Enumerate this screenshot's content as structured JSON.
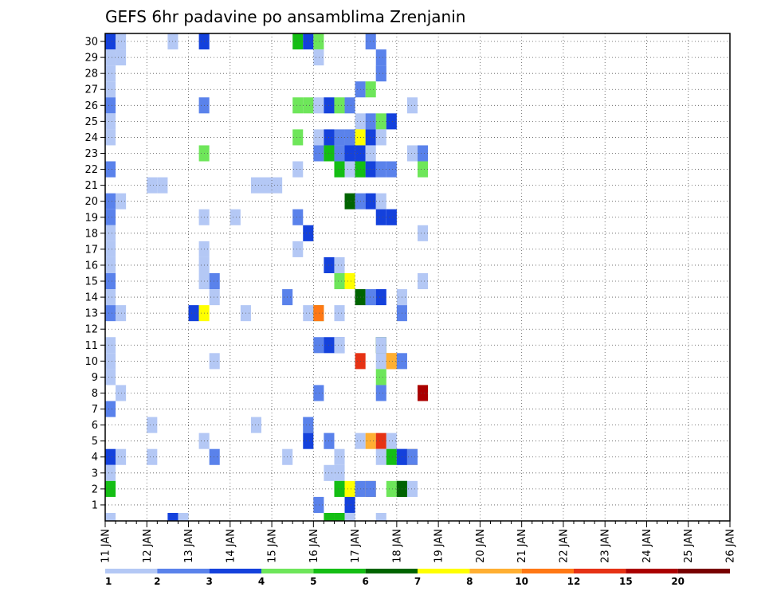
{
  "chart_data": {
    "type": "heatmap",
    "title": "GEFS 6hr padavine po ansamblima Zrenjanin",
    "xlabel": "",
    "ylabel": "",
    "x_tick_labels": [
      "11 JAN",
      "12 JAN",
      "13 JAN",
      "14 JAN",
      "15 JAN",
      "16 JAN",
      "17 JAN",
      "18 JAN",
      "19 JAN",
      "20 JAN",
      "21 JAN",
      "22 JAN",
      "23 JAN",
      "24 JAN",
      "25 JAN",
      "26 JAN"
    ],
    "y_tick_labels": [
      "1",
      "2",
      "3",
      "4",
      "5",
      "6",
      "7",
      "8",
      "9",
      "10",
      "11",
      "12",
      "13",
      "14",
      "15",
      "16",
      "17",
      "18",
      "19",
      "20",
      "21",
      "22",
      "23",
      "24",
      "25",
      "26",
      "27",
      "28",
      "29",
      "30"
    ],
    "time_steps": 60,
    "members": 31,
    "grid": true,
    "legend_position": "bottom",
    "colorbar": {
      "levels": [
        "1",
        "2",
        "3",
        "4",
        "5",
        "6",
        "7",
        "8",
        "10",
        "12",
        "15",
        "20"
      ],
      "colors": [
        "#b4c8f5",
        "#5a82eb",
        "#1441dc",
        "#6ee65a",
        "#14be14",
        "#006400",
        "#ffff00",
        "#ffaf32",
        "#ff7814",
        "#e63214",
        "#aa0000",
        "#780000"
      ]
    },
    "cells": [
      [
        0,
        30,
        3
      ],
      [
        1,
        30,
        1
      ],
      [
        6,
        30,
        1
      ],
      [
        9,
        30,
        3
      ],
      [
        18,
        30,
        5
      ],
      [
        19,
        30,
        3
      ],
      [
        20,
        30,
        4
      ],
      [
        25,
        30,
        2
      ],
      [
        0,
        29,
        1
      ],
      [
        1,
        29,
        1
      ],
      [
        20,
        29,
        1
      ],
      [
        26,
        29,
        2
      ],
      [
        0,
        28,
        1
      ],
      [
        26,
        28,
        1
      ],
      [
        26,
        28,
        2
      ],
      [
        0,
        27,
        1
      ],
      [
        24,
        27,
        2
      ],
      [
        25,
        27,
        4
      ],
      [
        0,
        26,
        2
      ],
      [
        9,
        26,
        2
      ],
      [
        18,
        26,
        4
      ],
      [
        19,
        26,
        4
      ],
      [
        20,
        26,
        1
      ],
      [
        21,
        26,
        3
      ],
      [
        22,
        26,
        4
      ],
      [
        23,
        26,
        2
      ],
      [
        29,
        26,
        1
      ],
      [
        0,
        25,
        1
      ],
      [
        24,
        25,
        1
      ],
      [
        25,
        25,
        2
      ],
      [
        26,
        25,
        4
      ],
      [
        27,
        25,
        3
      ],
      [
        0,
        24,
        1
      ],
      [
        18,
        24,
        4
      ],
      [
        20,
        24,
        1
      ],
      [
        21,
        24,
        3
      ],
      [
        22,
        24,
        2
      ],
      [
        23,
        24,
        2
      ],
      [
        24,
        24,
        7
      ],
      [
        25,
        24,
        3
      ],
      [
        26,
        24,
        1
      ],
      [
        9,
        23,
        4
      ],
      [
        20,
        23,
        2
      ],
      [
        21,
        23,
        5
      ],
      [
        22,
        23,
        2
      ],
      [
        23,
        23,
        3
      ],
      [
        23,
        23,
        3
      ],
      [
        24,
        23,
        3
      ],
      [
        25,
        23,
        1
      ],
      [
        29,
        23,
        1
      ],
      [
        30,
        23,
        2
      ],
      [
        0,
        22,
        2
      ],
      [
        18,
        22,
        1
      ],
      [
        22,
        22,
        5
      ],
      [
        23,
        22,
        1
      ],
      [
        24,
        22,
        2
      ],
      [
        24,
        22,
        5
      ],
      [
        25,
        22,
        3
      ],
      [
        26,
        22,
        2
      ],
      [
        27,
        22,
        2
      ],
      [
        30,
        22,
        4
      ],
      [
        4,
        21,
        1
      ],
      [
        5,
        21,
        1
      ],
      [
        14,
        21,
        1
      ],
      [
        15,
        21,
        1
      ],
      [
        16,
        21,
        1
      ],
      [
        0,
        20,
        2
      ],
      [
        1,
        20,
        1
      ],
      [
        23,
        20,
        6
      ],
      [
        24,
        20,
        2
      ],
      [
        25,
        20,
        3
      ],
      [
        26,
        20,
        1
      ],
      [
        0,
        19,
        2
      ],
      [
        9,
        19,
        1
      ],
      [
        12,
        19,
        1
      ],
      [
        18,
        19,
        2
      ],
      [
        26,
        19,
        3
      ],
      [
        27,
        19,
        1
      ],
      [
        27,
        19,
        3
      ],
      [
        0,
        18,
        1
      ],
      [
        19,
        18,
        1
      ],
      [
        19,
        18,
        3
      ],
      [
        30,
        18,
        1
      ],
      [
        0,
        17,
        1
      ],
      [
        9,
        17,
        1
      ],
      [
        18,
        17,
        1
      ],
      [
        0,
        16,
        1
      ],
      [
        9,
        16,
        1
      ],
      [
        21,
        16,
        3
      ],
      [
        22,
        16,
        1
      ],
      [
        0,
        15,
        2
      ],
      [
        9,
        15,
        1
      ],
      [
        10,
        15,
        2
      ],
      [
        22,
        15,
        4
      ],
      [
        23,
        15,
        7
      ],
      [
        30,
        15,
        1
      ],
      [
        0,
        14,
        1
      ],
      [
        10,
        14,
        1
      ],
      [
        17,
        14,
        2
      ],
      [
        24,
        14,
        1
      ],
      [
        24,
        14,
        6
      ],
      [
        25,
        14,
        1
      ],
      [
        25,
        14,
        2
      ],
      [
        26,
        14,
        3
      ],
      [
        28,
        14,
        1
      ],
      [
        0,
        13,
        2
      ],
      [
        1,
        13,
        1
      ],
      [
        8,
        13,
        3
      ],
      [
        9,
        13,
        7
      ],
      [
        13,
        13,
        1
      ],
      [
        19,
        13,
        1
      ],
      [
        20,
        13,
        4
      ],
      [
        20,
        13,
        9
      ],
      [
        22,
        13,
        1
      ],
      [
        28,
        13,
        2
      ],
      [
        0,
        11,
        1
      ],
      [
        20,
        11,
        2
      ],
      [
        21,
        11,
        3
      ],
      [
        22,
        11,
        2
      ],
      [
        22,
        11,
        1
      ],
      [
        26,
        11,
        6
      ],
      [
        26,
        11,
        1
      ],
      [
        0,
        10,
        1
      ],
      [
        10,
        10,
        1
      ],
      [
        24,
        10,
        10
      ],
      [
        26,
        10,
        1
      ],
      [
        27,
        10,
        9
      ],
      [
        27,
        10,
        8
      ],
      [
        28,
        10,
        2
      ],
      [
        0,
        9,
        1
      ],
      [
        26,
        9,
        4
      ],
      [
        1,
        8,
        1
      ],
      [
        20,
        8,
        2
      ],
      [
        26,
        8,
        2
      ],
      [
        30,
        8,
        7
      ],
      [
        30,
        8,
        11
      ],
      [
        0,
        7,
        2
      ],
      [
        4,
        6,
        1
      ],
      [
        14,
        6,
        1
      ],
      [
        19,
        6,
        1
      ],
      [
        19,
        6,
        2
      ],
      [
        9,
        5,
        1
      ],
      [
        19,
        5,
        3
      ],
      [
        21,
        5,
        1
      ],
      [
        21,
        5,
        2
      ],
      [
        24,
        5,
        1
      ],
      [
        25,
        5,
        8
      ],
      [
        26,
        5,
        10
      ],
      [
        27,
        5,
        1
      ],
      [
        0,
        4,
        3
      ],
      [
        1,
        4,
        1
      ],
      [
        4,
        4,
        1
      ],
      [
        10,
        4,
        2
      ],
      [
        17,
        4,
        1
      ],
      [
        22,
        4,
        1
      ],
      [
        26,
        4,
        1
      ],
      [
        27,
        4,
        5
      ],
      [
        28,
        4,
        2
      ],
      [
        28,
        4,
        3
      ],
      [
        29,
        4,
        8
      ],
      [
        29,
        4,
        2
      ],
      [
        0,
        3,
        1
      ],
      [
        21,
        3,
        1
      ],
      [
        22,
        3,
        1
      ],
      [
        0,
        2,
        5
      ],
      [
        22,
        2,
        5
      ],
      [
        23,
        2,
        7
      ],
      [
        24,
        2,
        2
      ],
      [
        25,
        2,
        8
      ],
      [
        25,
        2,
        2
      ],
      [
        27,
        2,
        4
      ],
      [
        28,
        2,
        5
      ],
      [
        28,
        2,
        6
      ],
      [
        29,
        2,
        1
      ],
      [
        20,
        1,
        2
      ],
      [
        23,
        1,
        3
      ],
      [
        0,
        0,
        1
      ],
      [
        6,
        0,
        1
      ],
      [
        6,
        0,
        3
      ],
      [
        7,
        0,
        1
      ],
      [
        21,
        0,
        5
      ],
      [
        22,
        0,
        5
      ],
      [
        23,
        0,
        1
      ],
      [
        26,
        0,
        1
      ]
    ]
  }
}
